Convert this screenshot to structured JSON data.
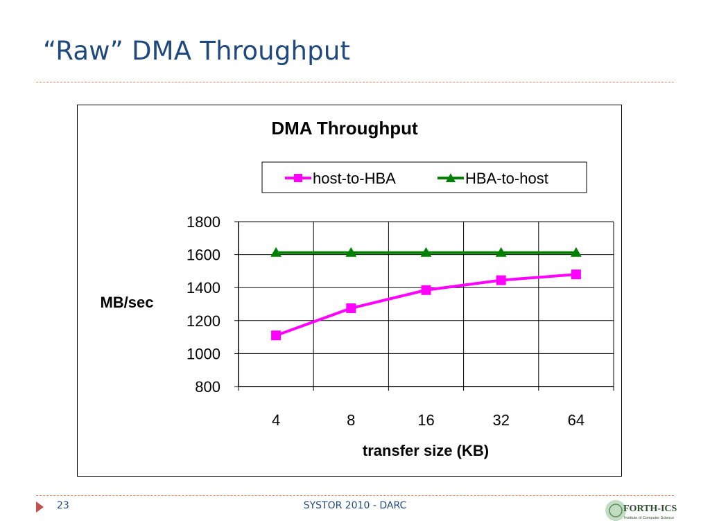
{
  "slide": {
    "title": "“Raw” DMA Throughput",
    "number": "23",
    "footer": "SYSTOR 2010 - DARC",
    "logo_text": "FORTH-ICS",
    "logo_subtext": "Institute of Computer Science"
  },
  "colors": {
    "title": "#1f497d",
    "rule": "#e07a5f",
    "marker": "#c0504d",
    "host_to_hba": "#ff00ff",
    "hba_to_host": "#008000"
  },
  "chart_data": {
    "type": "line",
    "title": "DMA Throughput",
    "xlabel": "transfer size (KB)",
    "ylabel": "MB/sec",
    "categories": [
      "4",
      "8",
      "16",
      "32",
      "64"
    ],
    "ylim": [
      800,
      1800
    ],
    "yticks": [
      800,
      1000,
      1200,
      1400,
      1600,
      1800
    ],
    "grid": true,
    "legend": "top",
    "series": [
      {
        "name": "host-to-HBA",
        "marker": "square",
        "color": "#ff00ff",
        "values": [
          1110,
          1275,
          1385,
          1445,
          1480
        ]
      },
      {
        "name": "HBA-to-host",
        "marker": "triangle",
        "color": "#008000",
        "values": [
          1612,
          1612,
          1612,
          1612,
          1612
        ]
      }
    ]
  }
}
